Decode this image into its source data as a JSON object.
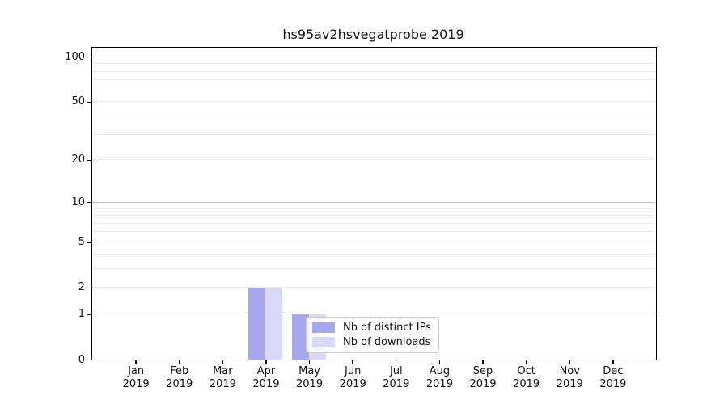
{
  "page": {
    "background": "#ffffff"
  },
  "chart_data": {
    "type": "bar",
    "title": "hs95av2hsvegatprobe 2019",
    "categories": [
      "Jan",
      "Feb",
      "Mar",
      "Apr",
      "May",
      "Jun",
      "Jul",
      "Aug",
      "Sep",
      "Oct",
      "Nov",
      "Dec"
    ],
    "x_sub_label": "2019",
    "series": [
      {
        "name": "Nb of distinct IPs",
        "color": "#a7a7f0",
        "values": [
          0,
          0,
          0,
          2,
          1,
          0,
          0,
          0,
          0,
          0,
          0,
          0
        ]
      },
      {
        "name": "Nb of downloads",
        "color": "#d9d9f7",
        "values": [
          0,
          0,
          0,
          2,
          1,
          0,
          0,
          0,
          0,
          0,
          0,
          0
        ]
      }
    ],
    "yscale": "log1p",
    "ylim": [
      0,
      115
    ],
    "ytick_values": [
      0,
      1,
      2,
      5,
      10,
      20,
      50,
      100
    ],
    "ytick_labels": [
      "0",
      "1",
      "2",
      "5",
      "10",
      "20",
      "50",
      "100"
    ],
    "major_grid_values": [
      1,
      10,
      100
    ],
    "minor_grid_values": [
      2,
      3,
      4,
      5,
      6,
      7,
      8,
      9,
      20,
      30,
      40,
      50,
      60,
      70,
      80,
      90
    ],
    "grid": true,
    "legend_position": "lower center inside plot",
    "xlabel": "",
    "ylabel": ""
  },
  "colors": {
    "major_grid": "#c0c0c0",
    "minor_grid": "#e9e9e9",
    "spine": "#000000",
    "legend_border": "#cccccc",
    "legend_background": "rgba(255,255,255,0.8)"
  }
}
